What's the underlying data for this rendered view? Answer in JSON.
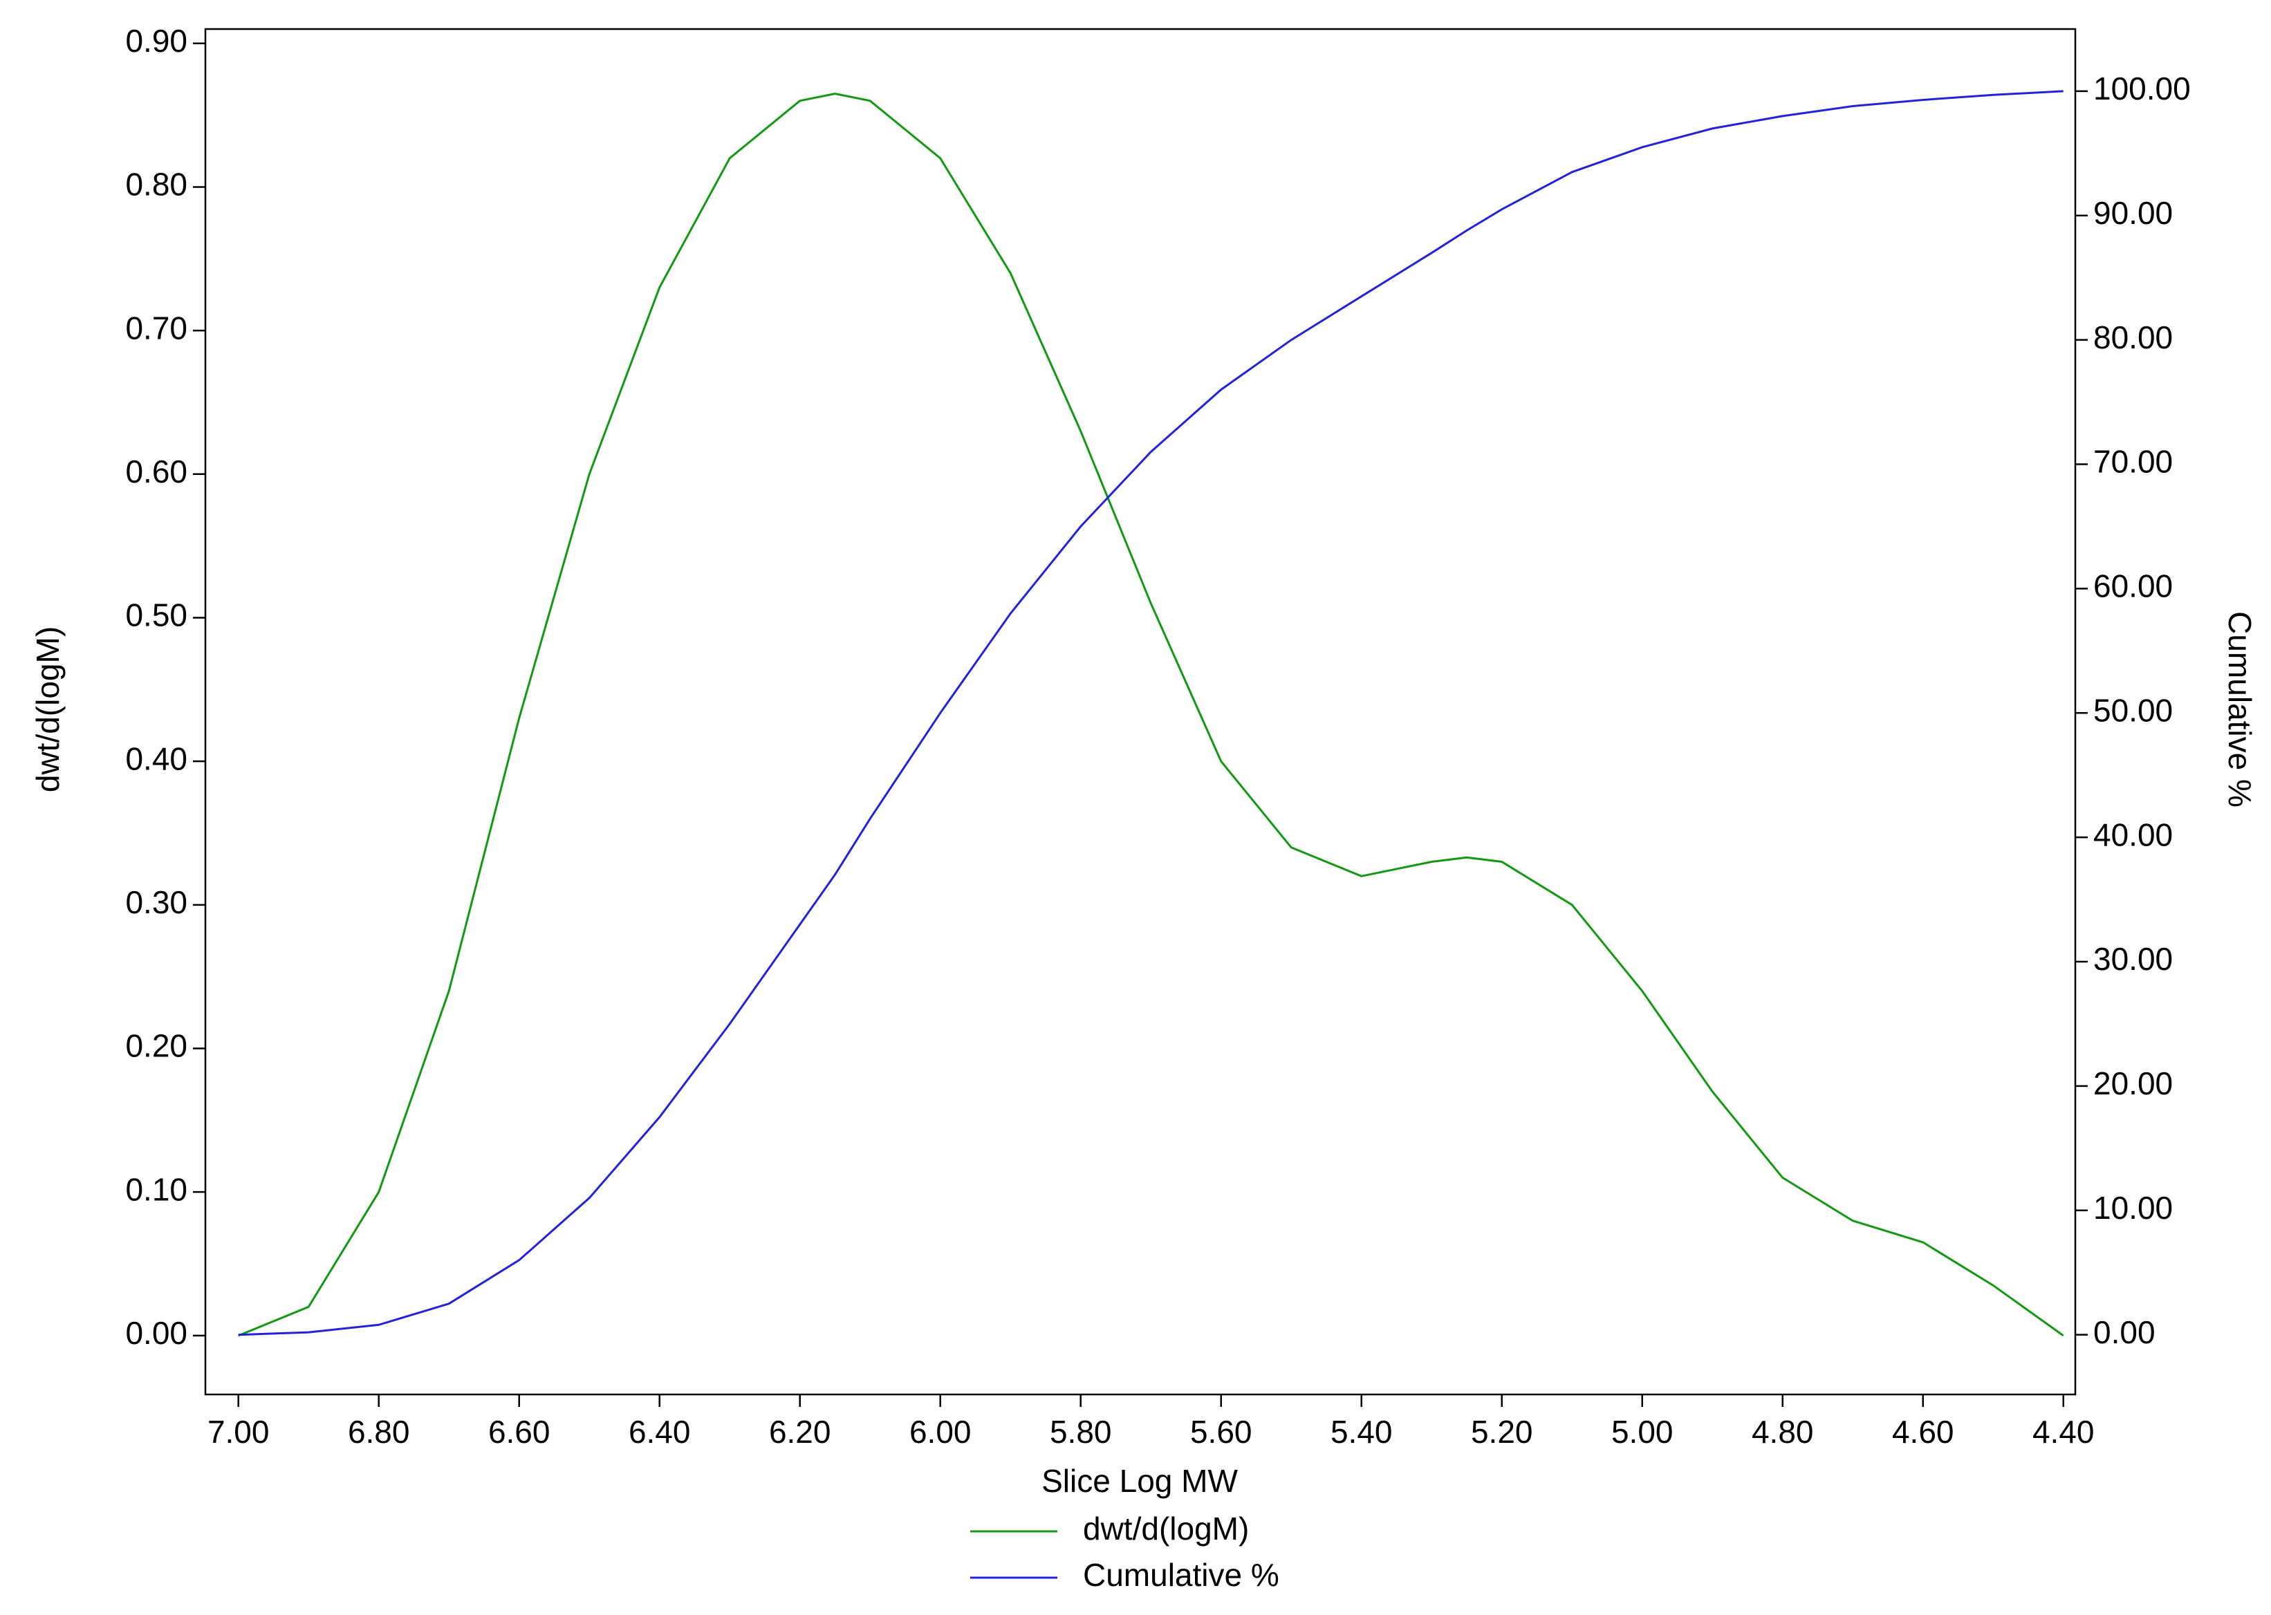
{
  "chart_data": {
    "type": "line",
    "x_label": "Slice Log MW",
    "y_label": "dwt/d(logM)",
    "y2_label": "Cumulative %",
    "x": [
      7.0,
      6.9,
      6.8,
      6.7,
      6.6,
      6.5,
      6.4,
      6.3,
      6.2,
      6.15,
      6.1,
      6.0,
      5.9,
      5.8,
      5.7,
      5.6,
      5.5,
      5.4,
      5.3,
      5.25,
      5.2,
      5.1,
      5.0,
      4.9,
      4.8,
      4.7,
      4.6,
      4.5,
      4.4
    ],
    "series": [
      {
        "name": "dwt/d(logM)",
        "color": "#119911",
        "axis": "y",
        "values": [
          0.0,
          0.02,
          0.1,
          0.24,
          0.43,
          0.6,
          0.73,
          0.82,
          0.86,
          0.865,
          0.86,
          0.82,
          0.74,
          0.63,
          0.51,
          0.4,
          0.34,
          0.32,
          0.33,
          0.333,
          0.33,
          0.3,
          0.24,
          0.17,
          0.11,
          0.08,
          0.065,
          0.035,
          0.0
        ]
      },
      {
        "name": "Cumulative %",
        "color": "#2222dd",
        "axis": "y2",
        "values": [
          0,
          0.2,
          0.8,
          2.5,
          6,
          11,
          17.5,
          25,
          33,
          37,
          41.5,
          50,
          58,
          65,
          71,
          76,
          80,
          83.5,
          87,
          88.8,
          90.5,
          93.5,
          95.5,
          97,
          98,
          98.8,
          99.3,
          99.7,
          100
        ]
      }
    ],
    "xlim": [
      7.047,
      4.383
    ],
    "xticks": [
      {
        "value": 7.0,
        "label": "7.00"
      },
      {
        "value": 6.8,
        "label": "6.80"
      },
      {
        "value": 6.6,
        "label": "6.60"
      },
      {
        "value": 6.4,
        "label": "6.40"
      },
      {
        "value": 6.2,
        "label": "6.20"
      },
      {
        "value": 6.0,
        "label": "6.00"
      },
      {
        "value": 5.8,
        "label": "5.80"
      },
      {
        "value": 5.6,
        "label": "5.60"
      },
      {
        "value": 5.4,
        "label": "5.40"
      },
      {
        "value": 5.2,
        "label": "5.20"
      },
      {
        "value": 5.0,
        "label": "5.00"
      },
      {
        "value": 4.8,
        "label": "4.80"
      },
      {
        "value": 4.6,
        "label": "4.60"
      },
      {
        "value": 4.4,
        "label": "4.40"
      }
    ],
    "ylim": [
      -0.041,
      0.91
    ],
    "yticks": [
      {
        "value": 0.0,
        "label": "0.00"
      },
      {
        "value": 0.1,
        "label": "0.10"
      },
      {
        "value": 0.2,
        "label": "0.20"
      },
      {
        "value": 0.3,
        "label": "0.30"
      },
      {
        "value": 0.4,
        "label": "0.40"
      },
      {
        "value": 0.5,
        "label": "0.50"
      },
      {
        "value": 0.6,
        "label": "0.60"
      },
      {
        "value": 0.7,
        "label": "0.70"
      },
      {
        "value": 0.8,
        "label": "0.80"
      },
      {
        "value": 0.9,
        "label": "0.90"
      }
    ],
    "y2lim": [
      -4.8,
      105.0
    ],
    "y2ticks": [
      {
        "value": 0,
        "label": "0.00"
      },
      {
        "value": 10,
        "label": "10.00"
      },
      {
        "value": 20,
        "label": "20.00"
      },
      {
        "value": 30,
        "label": "30.00"
      },
      {
        "value": 40,
        "label": "40.00"
      },
      {
        "value": 50,
        "label": "50.00"
      },
      {
        "value": 60,
        "label": "60.00"
      },
      {
        "value": 70,
        "label": "70.00"
      },
      {
        "value": 80,
        "label": "80.00"
      },
      {
        "value": 90,
        "label": "90.00"
      },
      {
        "value": 100,
        "label": "100.00"
      }
    ],
    "grid": false,
    "legend": "bottom"
  }
}
